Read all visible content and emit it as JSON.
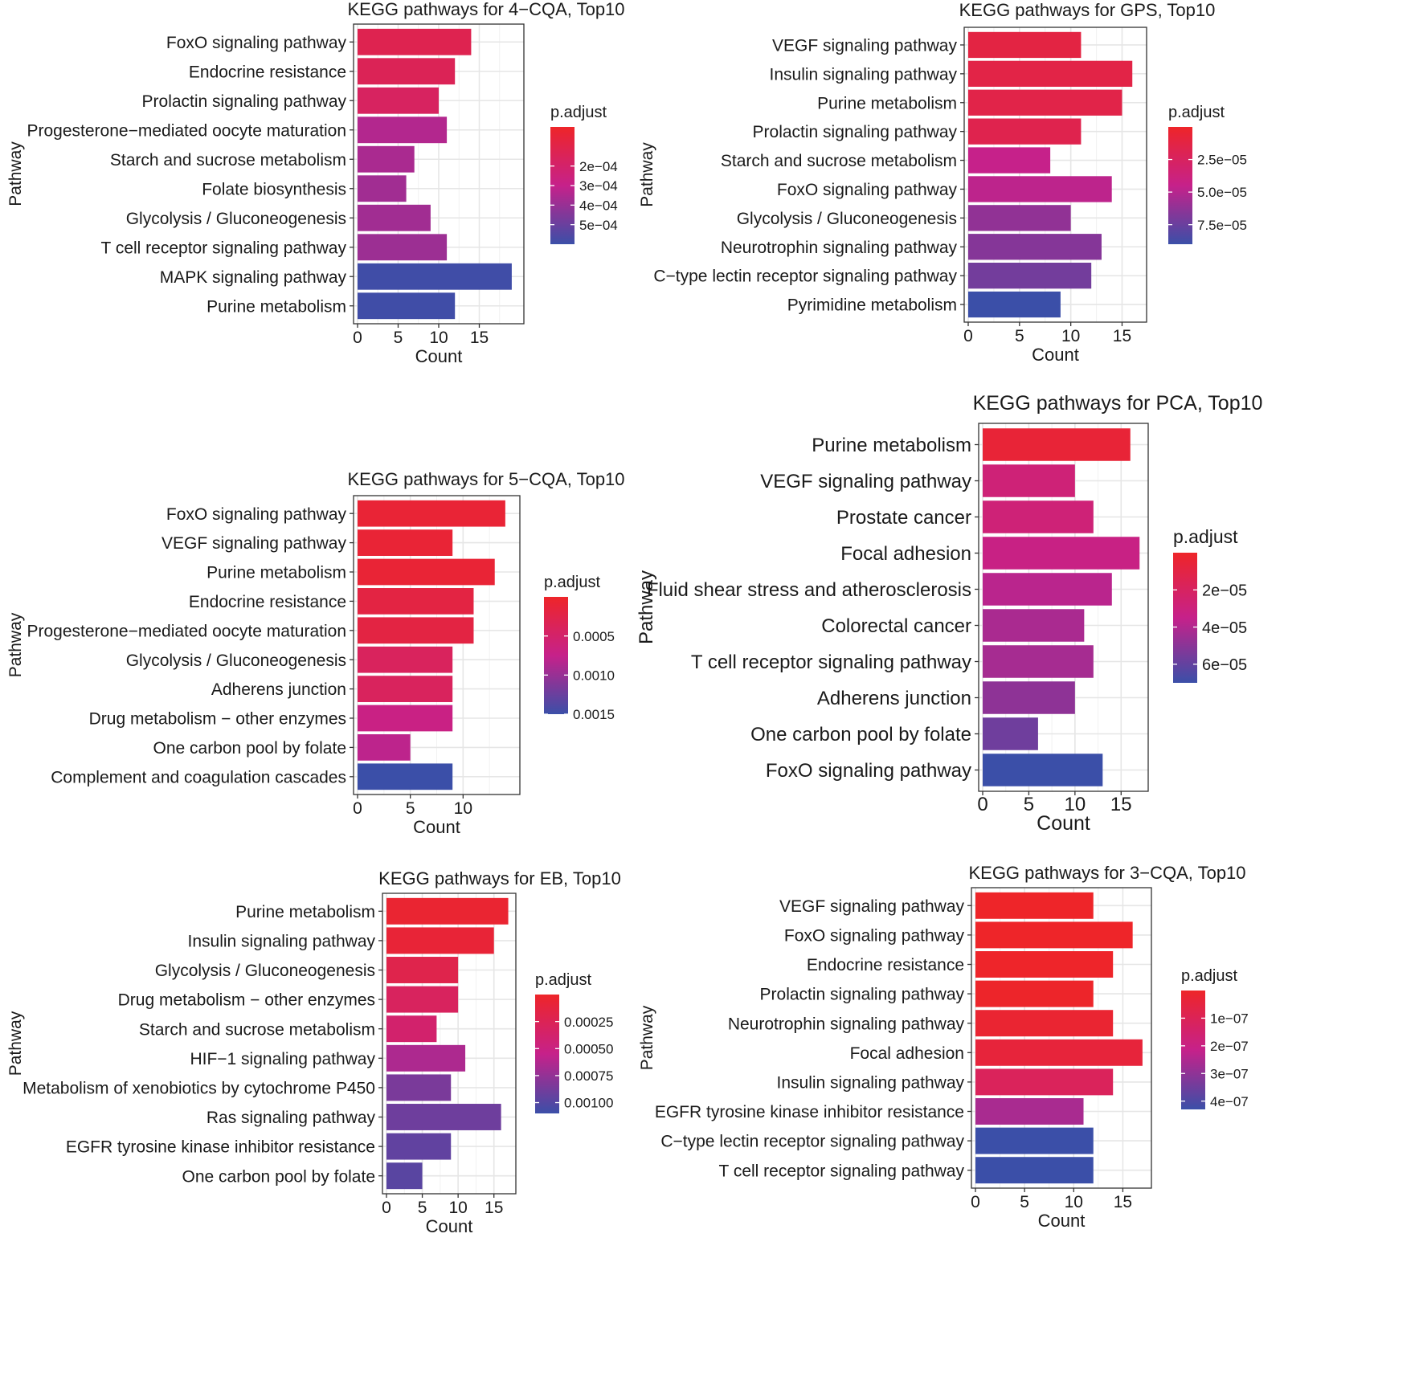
{
  "chart_data": [
    {
      "type": "bar",
      "orientation": "horizontal",
      "title": "KEGG pathways for 4−CQA, Top10",
      "xlabel": "Count",
      "ylabel": "Pathway",
      "xlim": [
        0,
        20
      ],
      "xticks": [
        0,
        5,
        10,
        15
      ],
      "grid": true,
      "legend": {
        "title": "p.adjust",
        "placement": "right",
        "range": [
          0.0,
          0.0006
        ],
        "ticks": [
          0.0002,
          0.0003,
          0.0004,
          0.0005
        ],
        "tick_labels": [
          "2e−04",
          "3e−04",
          "4e−04",
          "5e−04"
        ]
      },
      "categories": [
        "FoxO signaling pathway",
        "Endocrine resistance",
        "Prolactin signaling pathway",
        "Progesterone−mediated oocyte maturation",
        "Starch and sucrose metabolism",
        "Folate biosynthesis",
        "Glycolysis / Gluconeogenesis",
        "T cell receptor signaling pathway",
        "MAPK signaling pathway",
        "Purine metabolism"
      ],
      "values": [
        14,
        12,
        10,
        11,
        7,
        6,
        9,
        11,
        19,
        12
      ],
      "p_adjust": [
        0.00012,
        0.00014,
        0.00017,
        0.00034,
        0.00036,
        0.00038,
        0.00038,
        0.00039,
        0.00059,
        0.00059
      ]
    },
    {
      "type": "bar",
      "orientation": "horizontal",
      "title": "KEGG pathways for GPS, Top10",
      "xlabel": "Count",
      "ylabel": "Pathway",
      "xlim": [
        0,
        17
      ],
      "xticks": [
        0,
        5,
        10,
        15
      ],
      "grid": true,
      "legend": {
        "title": "p.adjust",
        "placement": "right",
        "range": [
          0.0,
          9e-05
        ],
        "ticks": [
          2.5e-05,
          5e-05,
          7.5e-05
        ],
        "tick_labels": [
          "2.5e−05",
          "5.0e−05",
          "7.5e−05"
        ]
      },
      "categories": [
        "VEGF signaling pathway",
        "Insulin signaling pathway",
        "Purine metabolism",
        "Prolactin signaling pathway",
        "Starch and sucrose metabolism",
        "FoxO signaling pathway",
        "Glycolysis / Gluconeogenesis",
        "Neurotrophin signaling pathway",
        "C−type lectin receptor signaling pathway",
        "Pyrimidine metabolism"
      ],
      "values": [
        11,
        16,
        15,
        11,
        8,
        14,
        10,
        13,
        12,
        9
      ],
      "p_adjust": [
        1.2e-05,
        1.4e-05,
        1.5e-05,
        1.7e-05,
        4.5e-05,
        4.8e-05,
        6.2e-05,
        6.6e-05,
        7.2e-05,
        9e-05
      ]
    },
    {
      "type": "bar",
      "orientation": "horizontal",
      "title": "KEGG pathways for 5−CQA, Top10",
      "xlabel": "Count",
      "ylabel": "Pathway",
      "xlim": [
        0,
        15
      ],
      "xticks": [
        0,
        5,
        10
      ],
      "grid": true,
      "legend": {
        "title": "p.adjust",
        "placement": "right",
        "range": [
          0.0,
          0.0015
        ],
        "ticks": [
          0.0005,
          0.001,
          0.0015
        ],
        "tick_labels": [
          "0.0005",
          "0.0010",
          "0.0015"
        ]
      },
      "categories": [
        "FoxO signaling pathway",
        "VEGF signaling pathway",
        "Purine metabolism",
        "Endocrine resistance",
        "Progesterone−mediated oocyte maturation",
        "Glycolysis / Gluconeogenesis",
        "Adherens junction",
        "Drug metabolism − other enzymes",
        "One carbon pool by folate",
        "Complement and coagulation cascades"
      ],
      "values": [
        14,
        9,
        13,
        11,
        11,
        9,
        9,
        9,
        5,
        9
      ],
      "p_adjust": [
        0.0001,
        0.0001,
        0.0001,
        0.0002,
        0.0002,
        0.0004,
        0.0004,
        0.0007,
        0.0008,
        0.0015
      ]
    },
    {
      "type": "bar",
      "orientation": "horizontal",
      "title": "KEGG pathways for PCA, Top10",
      "xlabel": "Count",
      "ylabel": "Pathway",
      "xlim": [
        0,
        17.5
      ],
      "xticks": [
        0,
        5,
        10,
        15
      ],
      "grid": true,
      "legend": {
        "title": "p.adjust",
        "placement": "right",
        "range": [
          0.0,
          7e-05
        ],
        "ticks": [
          2e-05,
          4e-05,
          6e-05
        ],
        "tick_labels": [
          "2e−05",
          "4e−05",
          "6e−05"
        ]
      },
      "categories": [
        "Purine metabolism",
        "VEGF signaling pathway",
        "Prostate cancer",
        "Focal adhesion",
        "Fluid shear stress and atherosclerosis",
        "Colorectal cancer",
        "T cell receptor signaling pathway",
        "Adherens junction",
        "One carbon pool by folate",
        "FoxO signaling pathway"
      ],
      "values": [
        16,
        10,
        12,
        17,
        14,
        11,
        12,
        10,
        6,
        13
      ],
      "p_adjust": [
        5e-06,
        2.8e-05,
        2.8e-05,
        3.3e-05,
        3.8e-05,
        4.2e-05,
        4.3e-05,
        4.9e-05,
        5.7e-05,
        7e-05
      ]
    },
    {
      "type": "bar",
      "orientation": "horizontal",
      "title": "KEGG pathways for EB, Top10",
      "xlabel": "Count",
      "ylabel": "Pathway",
      "xlim": [
        0,
        17.5
      ],
      "xticks": [
        0,
        5,
        10,
        15
      ],
      "grid": true,
      "legend": {
        "title": "p.adjust",
        "placement": "right",
        "range": [
          0.0,
          0.0011
        ],
        "ticks": [
          0.00025,
          0.0005,
          0.00075,
          0.001
        ],
        "tick_labels": [
          "0.00025",
          "0.00050",
          "0.00075",
          "0.00100"
        ]
      },
      "categories": [
        "Purine metabolism",
        "Insulin signaling pathway",
        "Glycolysis / Gluconeogenesis",
        "Drug metabolism − other enzymes",
        "Starch and sucrose metabolism",
        "HIF−1 signaling pathway",
        "Metabolism of xenobiotics by cytochrome P450",
        "Ras signaling pathway",
        "EGFR tyrosine kinase inhibitor resistance",
        "One carbon pool by folate"
      ],
      "values": [
        17,
        15,
        10,
        10,
        7,
        11,
        9,
        16,
        9,
        5
      ],
      "p_adjust": [
        5e-05,
        8e-05,
        0.0002,
        0.0003,
        0.00038,
        0.00065,
        0.00085,
        0.0009,
        0.00095,
        0.00098
      ]
    },
    {
      "type": "bar",
      "orientation": "horizontal",
      "title": "KEGG pathways for 3−CQA, Top10",
      "xlabel": "Count",
      "ylabel": "Pathway",
      "xlim": [
        0,
        17.5
      ],
      "xticks": [
        0,
        5,
        10,
        15
      ],
      "grid": true,
      "legend": {
        "title": "p.adjust",
        "placement": "right",
        "range": [
          0.0,
          4.3e-07
        ],
        "ticks": [
          1e-07,
          2e-07,
          3e-07,
          4e-07
        ],
        "tick_labels": [
          "1e−07",
          "2e−07",
          "3e−07",
          "4e−07"
        ]
      },
      "categories": [
        "VEGF signaling pathway",
        "FoxO signaling pathway",
        "Endocrine resistance",
        "Prolactin signaling pathway",
        "Neurotrophin signaling pathway",
        "Focal adhesion",
        "Insulin signaling pathway",
        "EGFR tyrosine kinase inhibitor resistance",
        "C−type lectin receptor signaling pathway",
        "T cell receptor signaling pathway"
      ],
      "values": [
        12,
        16,
        14,
        12,
        14,
        17,
        14,
        11,
        12,
        12
      ],
      "p_adjust": [
        1e-09,
        1e-09,
        2e-09,
        3e-09,
        2e-08,
        4e-08,
        1.1e-07,
        2.6e-07,
        4.3e-07,
        4.3e-07
      ]
    }
  ]
}
